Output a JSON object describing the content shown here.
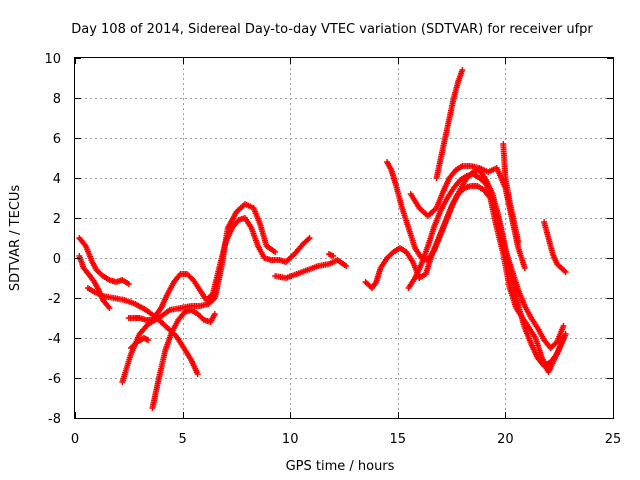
{
  "chart_data": {
    "type": "scatter",
    "title": "Day 108 of 2014, Sidereal Day-to-day VTEC variation (SDTVAR) for receiver ufpr",
    "xlabel": "GPS time / hours",
    "ylabel": "SDTVAR / TECUs",
    "xlim": [
      0,
      25
    ],
    "ylim": [
      -8,
      10
    ],
    "xticks": [
      0,
      5,
      10,
      15,
      20,
      25
    ],
    "yticks": [
      -8,
      -6,
      -4,
      -2,
      0,
      2,
      4,
      6,
      8,
      10
    ],
    "grid": true,
    "marker": "plus",
    "series_color": "#ff0000",
    "series": [
      {
        "x": [
          0.2,
          0.5,
          0.8,
          1.0,
          1.3,
          1.6,
          1.9,
          2.2,
          2.5
        ],
        "y": [
          1.0,
          0.6,
          -0.2,
          -0.6,
          -0.9,
          -1.1,
          -1.2,
          -1.1,
          -1.3
        ]
      },
      {
        "x": [
          0.2,
          0.4,
          0.7,
          0.9,
          1.1,
          1.3,
          1.6
        ],
        "y": [
          0.1,
          -0.5,
          -0.9,
          -1.2,
          -1.6,
          -2.1,
          -2.5
        ]
      },
      {
        "x": [
          0.6,
          0.9,
          1.3,
          1.8,
          2.3,
          2.8,
          3.3,
          3.8,
          4.3,
          4.7,
          5.0,
          5.4,
          5.7
        ],
        "y": [
          -1.5,
          -1.7,
          -1.9,
          -2.0,
          -2.1,
          -2.3,
          -2.6,
          -3.0,
          -3.5,
          -3.9,
          -4.4,
          -5.1,
          -5.8
        ]
      },
      {
        "x": [
          2.5,
          2.8,
          3.0,
          3.3,
          3.6,
          4.0,
          4.3,
          4.6,
          4.9,
          5.2,
          5.5,
          5.8,
          6.1,
          6.4,
          6.7,
          7.0,
          7.3,
          7.6,
          7.9,
          8.2,
          8.5,
          8.8,
          9.1,
          9.5,
          9.8,
          10.2,
          10.6,
          10.9
        ],
        "y": [
          -3.0,
          -3.0,
          -3.0,
          -3.1,
          -3.1,
          -2.5,
          -1.8,
          -1.2,
          -0.8,
          -0.8,
          -1.1,
          -1.6,
          -2.1,
          -1.8,
          -0.5,
          0.8,
          1.5,
          1.9,
          2.0,
          1.5,
          0.6,
          0.0,
          -0.1,
          -0.1,
          -0.2,
          0.2,
          0.7,
          1.0
        ]
      },
      {
        "x": [
          2.2,
          2.6,
          3.0,
          3.4,
          3.9,
          4.4,
          4.9,
          5.4,
          5.8,
          6.2,
          6.5,
          6.8,
          7.1,
          7.5,
          7.9,
          8.3,
          8.6,
          8.9,
          9.3
        ],
        "y": [
          -6.2,
          -4.8,
          -3.8,
          -3.3,
          -3.0,
          -2.6,
          -2.5,
          -2.4,
          -2.4,
          -2.3,
          -2.0,
          -0.5,
          1.5,
          2.3,
          2.7,
          2.5,
          1.7,
          0.6,
          0.3
        ]
      },
      {
        "x": [
          3.6,
          3.9,
          4.2,
          4.5,
          4.8,
          5.1,
          5.4,
          5.7,
          6.0,
          6.3,
          6.5
        ],
        "y": [
          -7.5,
          -6.0,
          -4.6,
          -3.7,
          -3.1,
          -2.7,
          -2.6,
          -2.8,
          -3.1,
          -3.2,
          -2.8
        ]
      },
      {
        "x": [
          2.6,
          2.9,
          3.2,
          3.4
        ],
        "y": [
          -4.5,
          -4.2,
          -4.0,
          -4.1
        ]
      },
      {
        "x": [
          9.3,
          9.8,
          10.3,
          10.8,
          11.3,
          11.8,
          12.2,
          12.6
        ],
        "y": [
          -0.9,
          -1.0,
          -0.8,
          -0.6,
          -0.4,
          -0.3,
          -0.1,
          -0.4
        ]
      },
      {
        "x": [
          11.8,
          12.0
        ],
        "y": [
          0.2,
          0.1
        ]
      },
      {
        "x": [
          13.5,
          13.8,
          14.0,
          14.2,
          14.5,
          14.8,
          15.1,
          15.4,
          15.7,
          16.0,
          16.3,
          16.6,
          16.9,
          17.2,
          17.5,
          17.8,
          18.1,
          18.4,
          18.7,
          19.0,
          19.3,
          19.6,
          19.9,
          20.2,
          20.5,
          20.8,
          21.1,
          21.4,
          21.7,
          22.0,
          22.3,
          22.6,
          22.8
        ],
        "y": [
          -1.2,
          -1.5,
          -1.2,
          -0.5,
          0.0,
          0.3,
          0.5,
          0.3,
          -0.2,
          -1.0,
          -0.8,
          0.2,
          1.0,
          1.8,
          2.6,
          3.2,
          3.5,
          3.6,
          3.6,
          3.4,
          3.0,
          1.5,
          0.2,
          -1.5,
          -2.5,
          -3.0,
          -3.5,
          -4.0,
          -5.0,
          -5.7,
          -5.0,
          -4.3,
          -3.8
        ]
      },
      {
        "x": [
          14.5,
          14.7,
          14.9,
          15.2,
          15.5,
          15.8,
          16.1,
          16.4,
          16.7,
          17.0,
          17.3,
          17.6,
          17.9,
          18.2,
          18.5,
          18.8,
          19.1,
          19.4,
          19.7,
          20.0,
          20.3,
          20.6,
          20.9,
          21.2,
          21.5,
          21.8,
          22.1,
          22.4,
          22.7
        ],
        "y": [
          4.8,
          4.4,
          3.7,
          2.5,
          1.5,
          0.5,
          0.0,
          -0.1,
          0.4,
          1.2,
          2.0,
          2.8,
          3.4,
          4.0,
          4.3,
          4.4,
          3.9,
          3.2,
          2.0,
          0.5,
          -1.0,
          -2.4,
          -3.5,
          -4.3,
          -5.0,
          -5.4,
          -5.2,
          -4.8,
          -4.0
        ]
      },
      {
        "x": [
          15.5,
          15.8,
          16.1,
          16.4,
          16.7,
          17.0,
          17.3,
          17.6,
          17.9,
          18.2,
          18.5,
          18.8,
          19.1,
          19.4,
          19.7,
          20.0,
          20.3,
          20.6,
          20.9,
          21.2,
          21.5,
          21.8,
          22.1,
          22.4,
          22.7
        ],
        "y": [
          -1.5,
          -1.0,
          -0.3,
          0.6,
          1.6,
          2.4,
          3.0,
          3.5,
          3.9,
          4.1,
          4.2,
          4.0,
          3.7,
          3.0,
          1.8,
          0.4,
          -0.6,
          -1.6,
          -2.4,
          -3.0,
          -3.5,
          -4.1,
          -4.5,
          -4.2,
          -3.4
        ]
      },
      {
        "x": [
          15.6,
          16.0,
          16.4,
          16.8,
          17.1,
          17.4,
          17.7,
          18.0,
          18.4,
          18.8,
          19.2,
          19.6,
          20.0,
          20.3,
          20.6,
          20.9
        ],
        "y": [
          3.2,
          2.5,
          2.1,
          2.5,
          3.3,
          4.0,
          4.4,
          4.6,
          4.6,
          4.5,
          4.3,
          4.5,
          3.5,
          2.0,
          0.5,
          -0.5
        ]
      },
      {
        "x": [
          16.8,
          17.0,
          17.2,
          17.4,
          17.6,
          17.8,
          18.0
        ],
        "y": [
          4.0,
          5.0,
          6.0,
          7.0,
          8.0,
          8.8,
          9.4
        ]
      },
      {
        "x": [
          19.9,
          20.0,
          20.2,
          20.4,
          20.6
        ],
        "y": [
          5.7,
          4.0,
          2.8,
          1.8,
          0.8
        ]
      },
      {
        "x": [
          21.8,
          22.0,
          22.2,
          22.4,
          22.6,
          22.8
        ],
        "y": [
          1.8,
          1.0,
          0.2,
          -0.3,
          -0.5,
          -0.7
        ]
      }
    ]
  }
}
